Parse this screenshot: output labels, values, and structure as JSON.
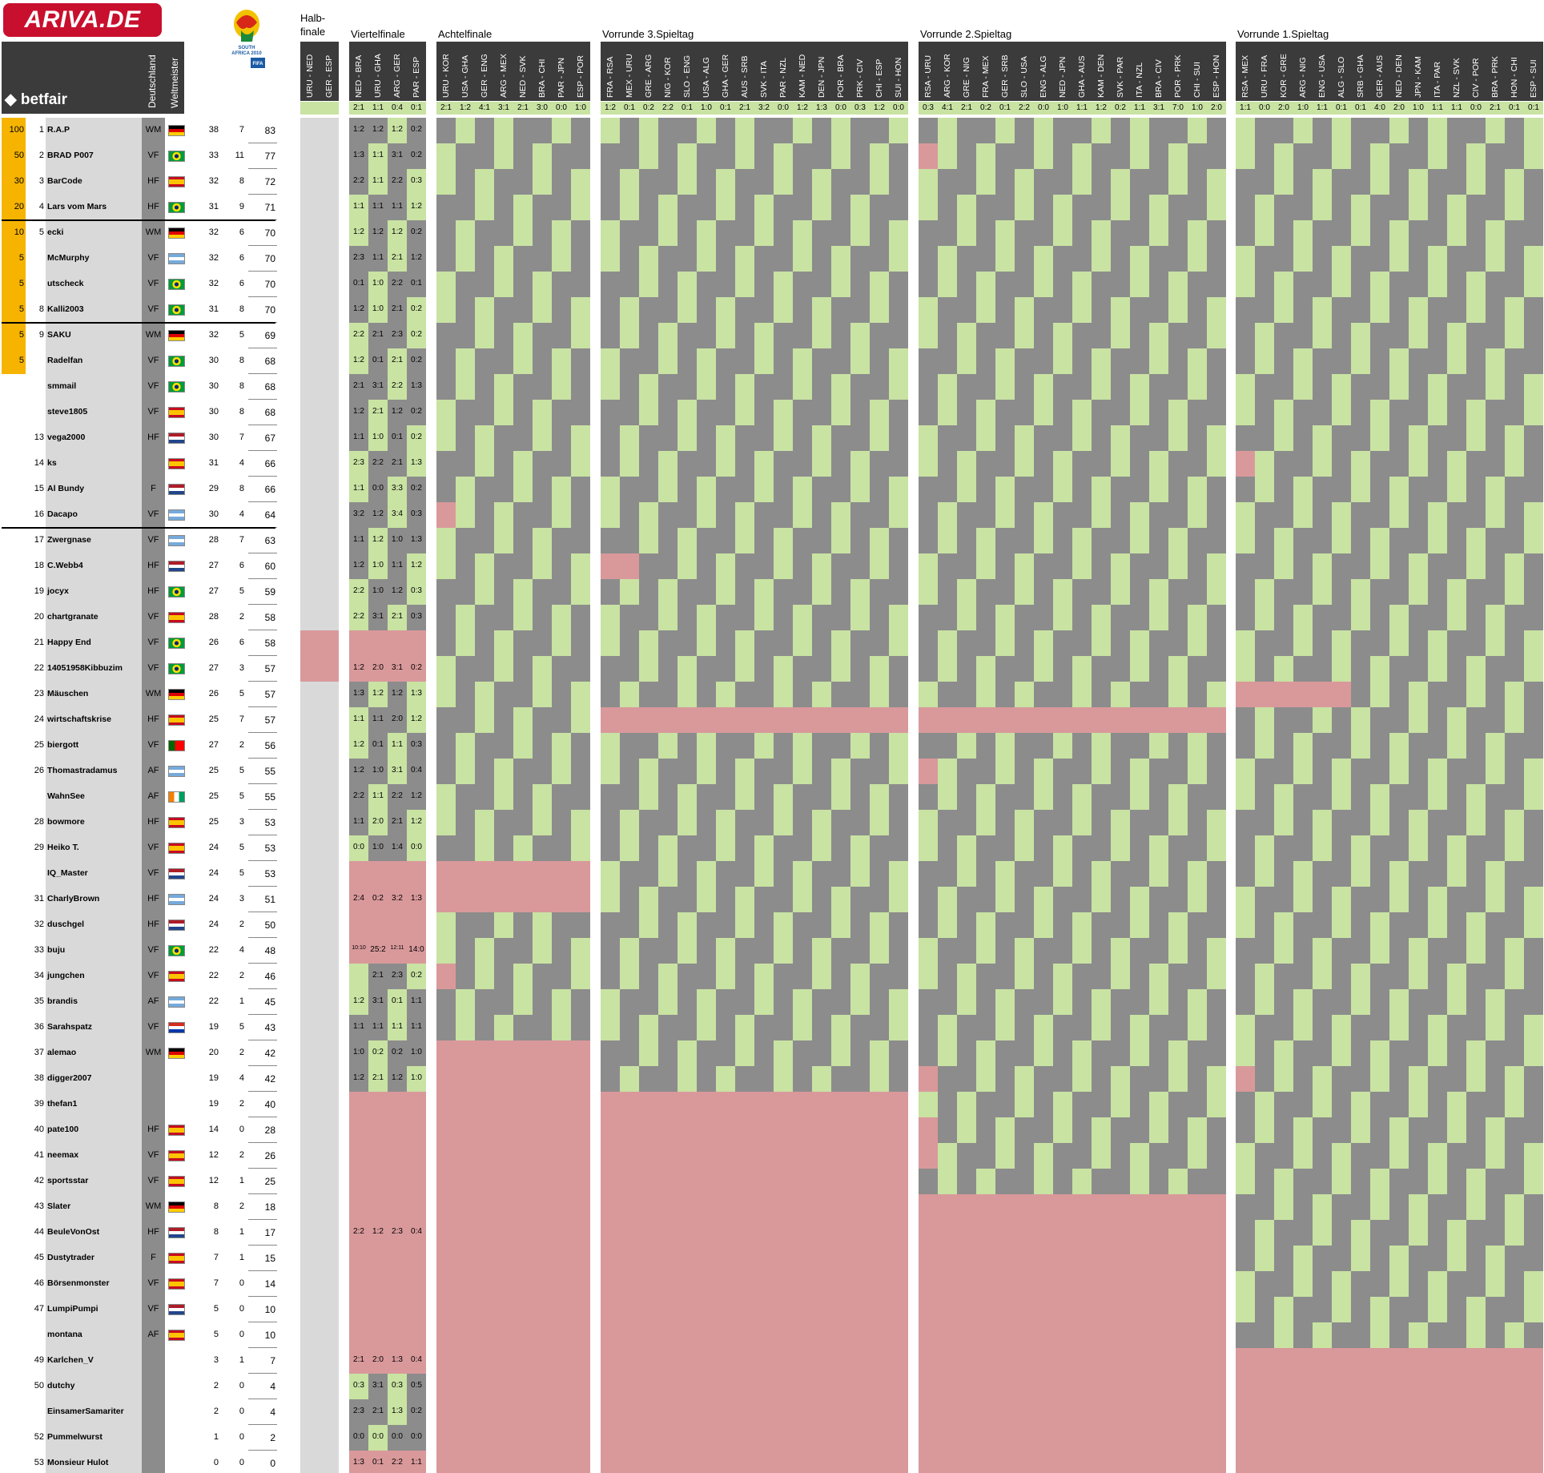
{
  "brand": {
    "logo": "ARIVA.DE",
    "sponsor": "betfair",
    "fifa_logo": "SOUTH AFRICA 2010 FIFA WORLD CUP"
  },
  "columns": {
    "de": "Deutschland",
    "wm": "Weltmeister"
  },
  "sections": [
    {
      "title": "Halb-\nfinale",
      "matches": [
        "URU - NED",
        "GER - ESP"
      ],
      "results": [
        "",
        ""
      ]
    },
    {
      "title": "Viertelfinale",
      "matches": [
        "NED - BRA",
        "URU - GHA",
        "ARG - GER",
        "PAR - ESP"
      ],
      "results": [
        "2:1",
        "1:1",
        "0:4",
        "0:1"
      ]
    },
    {
      "title": "Achtelfinale",
      "matches": [
        "URU - KOR",
        "USA - GHA",
        "GER - ENG",
        "ARG - MEX",
        "NED - SVK",
        "BRA - CHI",
        "PAR - JPN",
        "ESP - POR"
      ],
      "results": [
        "2:1",
        "1:2",
        "4:1",
        "3:1",
        "2:1",
        "3:0",
        "0:0",
        "1:0"
      ]
    },
    {
      "title": "Vorrunde 3.Spieltag",
      "matches": [
        "FRA - RSA",
        "MEX - URU",
        "GRE - ARG",
        "NIG - KOR",
        "SLO - ENG",
        "USA - ALG",
        "GHA - GER",
        "AUS - SRB",
        "SVK - ITA",
        "PAR - NZL",
        "KAM - NED",
        "DEN - JPN",
        "POR - BRA",
        "PRK - CIV",
        "CHI - ESP",
        "SUI - HON"
      ],
      "results": [
        "1:2",
        "0:1",
        "0:2",
        "2:2",
        "0:1",
        "1:0",
        "0:1",
        "2:1",
        "3:2",
        "0:0",
        "1:2",
        "1:3",
        "0:0",
        "0:3",
        "1:2",
        "0:0"
      ]
    },
    {
      "title": "Vorrunde 2.Spieltag",
      "matches": [
        "RSA - URU",
        "ARG - KOR",
        "GRE - NIG",
        "FRA - MEX",
        "GER - SRB",
        "SLO - USA",
        "ENG - ALG",
        "NED - JPN",
        "GHA - AUS",
        "KAM - DEN",
        "SVK - PAR",
        "ITA - NZL",
        "BRA - CIV",
        "POR - PRK",
        "CHI - SUI",
        "ESP - HON"
      ],
      "results": [
        "0:3",
        "4:1",
        "2:1",
        "0:2",
        "0:1",
        "2:2",
        "0:0",
        "1:0",
        "1:1",
        "1:2",
        "0:2",
        "1:1",
        "3:1",
        "7:0",
        "1:0",
        "2:0"
      ]
    },
    {
      "title": "Vorrunde 1.Spieltag",
      "matches": [
        "RSA - MEX",
        "URU - FRA",
        "KOR - GRE",
        "ARG - NIG",
        "ENG - USA",
        "ALG - SLO",
        "SRB - GHA",
        "GER - AUS",
        "NED - DEN",
        "JPN - KAM",
        "ITA - PAR",
        "NZL - SVK",
        "CIV - POR",
        "BRA - PRK",
        "HON - CHI",
        "ESP - SUI"
      ],
      "results": [
        "1:1",
        "0:0",
        "2:0",
        "1:0",
        "1:1",
        "0:1",
        "0:1",
        "4:0",
        "2:0",
        "1:0",
        "1:1",
        "1:1",
        "0:0",
        "2:1",
        "0:1",
        "0:1"
      ]
    }
  ],
  "players": [
    {
      "prize": "100",
      "rank": "1",
      "name": "R.A.P",
      "de": "WM",
      "flag": "DE",
      "c1": "38",
      "c2": "7",
      "pts": "83"
    },
    {
      "prize": "50",
      "rank": "2",
      "name": "BRAD P007",
      "de": "VF",
      "flag": "BR",
      "c1": "33",
      "c2": "11",
      "pts": "77"
    },
    {
      "prize": "30",
      "rank": "3",
      "name": "BarCode",
      "de": "HF",
      "flag": "ES",
      "c1": "32",
      "c2": "8",
      "pts": "72"
    },
    {
      "prize": "20",
      "rank": "4",
      "name": "Lars vom Mars",
      "de": "HF",
      "flag": "BR",
      "c1": "31",
      "c2": "9",
      "pts": "71"
    },
    {
      "prize": "10",
      "rank": "5",
      "name": "ecki",
      "de": "WM",
      "flag": "DE",
      "c1": "32",
      "c2": "6",
      "pts": "70"
    },
    {
      "prize": "5",
      "rank": "",
      "name": "McMurphy",
      "de": "VF",
      "flag": "AR",
      "c1": "32",
      "c2": "6",
      "pts": "70"
    },
    {
      "prize": "5",
      "rank": "",
      "name": "utscheck",
      "de": "VF",
      "flag": "BR",
      "c1": "32",
      "c2": "6",
      "pts": "70"
    },
    {
      "prize": "5",
      "rank": "8",
      "name": "Kalli2003",
      "de": "VF",
      "flag": "BR",
      "c1": "31",
      "c2": "8",
      "pts": "70"
    },
    {
      "prize": "5",
      "rank": "9",
      "name": "SAKU",
      "de": "WM",
      "flag": "DE",
      "c1": "32",
      "c2": "5",
      "pts": "69"
    },
    {
      "prize": "5",
      "rank": "",
      "name": "Radelfan",
      "de": "VF",
      "flag": "BR",
      "c1": "30",
      "c2": "8",
      "pts": "68"
    },
    {
      "prize": "",
      "rank": "",
      "name": "smmail",
      "de": "VF",
      "flag": "BR",
      "c1": "30",
      "c2": "8",
      "pts": "68"
    },
    {
      "prize": "",
      "rank": "",
      "name": "steve1805",
      "de": "VF",
      "flag": "ES",
      "c1": "30",
      "c2": "8",
      "pts": "68"
    },
    {
      "prize": "",
      "rank": "13",
      "name": "vega2000",
      "de": "HF",
      "flag": "NL",
      "c1": "30",
      "c2": "7",
      "pts": "67"
    },
    {
      "prize": "",
      "rank": "14",
      "name": "ks",
      "de": "",
      "flag": "ES",
      "c1": "31",
      "c2": "4",
      "pts": "66"
    },
    {
      "prize": "",
      "rank": "15",
      "name": "Al Bundy",
      "de": "F",
      "flag": "NL",
      "c1": "29",
      "c2": "8",
      "pts": "66"
    },
    {
      "prize": "",
      "rank": "16",
      "name": "Dacapo",
      "de": "VF",
      "flag": "AR",
      "c1": "30",
      "c2": "4",
      "pts": "64"
    },
    {
      "prize": "",
      "rank": "17",
      "name": "Zwergnase",
      "de": "VF",
      "flag": "AR",
      "c1": "28",
      "c2": "7",
      "pts": "63"
    },
    {
      "prize": "",
      "rank": "18",
      "name": "C.Webb4",
      "de": "HF",
      "flag": "NL",
      "c1": "27",
      "c2": "6",
      "pts": "60"
    },
    {
      "prize": "",
      "rank": "19",
      "name": "jocyx",
      "de": "HF",
      "flag": "BR",
      "c1": "27",
      "c2": "5",
      "pts": "59"
    },
    {
      "prize": "",
      "rank": "20",
      "name": "chartgranate",
      "de": "VF",
      "flag": "ES",
      "c1": "28",
      "c2": "2",
      "pts": "58"
    },
    {
      "prize": "",
      "rank": "21",
      "name": "Happy End",
      "de": "VF",
      "flag": "BR",
      "c1": "26",
      "c2": "6",
      "pts": "58"
    },
    {
      "prize": "",
      "rank": "22",
      "name": "14051958Kibbuzim",
      "de": "VF",
      "flag": "BR",
      "c1": "27",
      "c2": "3",
      "pts": "57"
    },
    {
      "prize": "",
      "rank": "23",
      "name": "Mäuschen",
      "de": "WM",
      "flag": "DE",
      "c1": "26",
      "c2": "5",
      "pts": "57"
    },
    {
      "prize": "",
      "rank": "24",
      "name": "wirtschaftskrise",
      "de": "HF",
      "flag": "ES",
      "c1": "25",
      "c2": "7",
      "pts": "57"
    },
    {
      "prize": "",
      "rank": "25",
      "name": "biergott",
      "de": "VF",
      "flag": "PT",
      "c1": "27",
      "c2": "2",
      "pts": "56"
    },
    {
      "prize": "",
      "rank": "26",
      "name": "Thomastradamus",
      "de": "AF",
      "flag": "AR",
      "c1": "25",
      "c2": "5",
      "pts": "55"
    },
    {
      "prize": "",
      "rank": "",
      "name": "WahnSee",
      "de": "AF",
      "flag": "CI",
      "c1": "25",
      "c2": "5",
      "pts": "55"
    },
    {
      "prize": "",
      "rank": "28",
      "name": "bowmore",
      "de": "HF",
      "flag": "ES",
      "c1": "25",
      "c2": "3",
      "pts": "53"
    },
    {
      "prize": "",
      "rank": "29",
      "name": "Heiko T.",
      "de": "VF",
      "flag": "ES",
      "c1": "24",
      "c2": "5",
      "pts": "53"
    },
    {
      "prize": "",
      "rank": "",
      "name": "IQ_Master",
      "de": "VF",
      "flag": "NL",
      "c1": "24",
      "c2": "5",
      "pts": "53"
    },
    {
      "prize": "",
      "rank": "31",
      "name": "CharlyBrown",
      "de": "HF",
      "flag": "AR",
      "c1": "24",
      "c2": "3",
      "pts": "51"
    },
    {
      "prize": "",
      "rank": "32",
      "name": "duschgel",
      "de": "HF",
      "flag": "NL",
      "c1": "24",
      "c2": "2",
      "pts": "50"
    },
    {
      "prize": "",
      "rank": "33",
      "name": "buju",
      "de": "VF",
      "flag": "BR",
      "c1": "22",
      "c2": "4",
      "pts": "48"
    },
    {
      "prize": "",
      "rank": "34",
      "name": "jungchen",
      "de": "VF",
      "flag": "ES",
      "c1": "22",
      "c2": "2",
      "pts": "46"
    },
    {
      "prize": "",
      "rank": "35",
      "name": "brandis",
      "de": "AF",
      "flag": "AR",
      "c1": "22",
      "c2": "1",
      "pts": "45"
    },
    {
      "prize": "",
      "rank": "36",
      "name": "Sarahspatz",
      "de": "VF",
      "flag": "PY",
      "c1": "19",
      "c2": "5",
      "pts": "43"
    },
    {
      "prize": "",
      "rank": "37",
      "name": "alemao",
      "de": "WM",
      "flag": "DE",
      "c1": "20",
      "c2": "2",
      "pts": "42"
    },
    {
      "prize": "",
      "rank": "38",
      "name": "digger2007",
      "de": "",
      "flag": "",
      "c1": "19",
      "c2": "4",
      "pts": "42"
    },
    {
      "prize": "",
      "rank": "39",
      "name": "thefan1",
      "de": "",
      "flag": "",
      "c1": "19",
      "c2": "2",
      "pts": "40"
    },
    {
      "prize": "",
      "rank": "40",
      "name": "pate100",
      "de": "HF",
      "flag": "ES",
      "c1": "14",
      "c2": "0",
      "pts": "28"
    },
    {
      "prize": "",
      "rank": "41",
      "name": "neemax",
      "de": "VF",
      "flag": "ES",
      "c1": "12",
      "c2": "2",
      "pts": "26"
    },
    {
      "prize": "",
      "rank": "42",
      "name": "sportsstar",
      "de": "VF",
      "flag": "ES",
      "c1": "12",
      "c2": "1",
      "pts": "25"
    },
    {
      "prize": "",
      "rank": "43",
      "name": "Slater",
      "de": "WM",
      "flag": "DE",
      "c1": "8",
      "c2": "2",
      "pts": "18"
    },
    {
      "prize": "",
      "rank": "44",
      "name": "BeuleVonOst",
      "de": "HF",
      "flag": "NL",
      "c1": "8",
      "c2": "1",
      "pts": "17"
    },
    {
      "prize": "",
      "rank": "45",
      "name": "Dustytrader",
      "de": "F",
      "flag": "ES",
      "c1": "7",
      "c2": "1",
      "pts": "15"
    },
    {
      "prize": "",
      "rank": "46",
      "name": "Börsenmonster",
      "de": "VF",
      "flag": "ES",
      "c1": "7",
      "c2": "0",
      "pts": "14"
    },
    {
      "prize": "",
      "rank": "47",
      "name": "LumpiPumpi",
      "de": "VF",
      "flag": "NL",
      "c1": "5",
      "c2": "0",
      "pts": "10"
    },
    {
      "prize": "",
      "rank": "",
      "name": "montana",
      "de": "AF",
      "flag": "ES",
      "c1": "5",
      "c2": "0",
      "pts": "10"
    },
    {
      "prize": "",
      "rank": "49",
      "name": "Karlchen_V",
      "de": "",
      "flag": "",
      "c1": "3",
      "c2": "1",
      "pts": "7"
    },
    {
      "prize": "",
      "rank": "50",
      "name": "dutchy",
      "de": "",
      "flag": "",
      "c1": "2",
      "c2": "0",
      "pts": "4"
    },
    {
      "prize": "",
      "rank": "",
      "name": "EinsamerSamariter",
      "de": "",
      "flag": "",
      "c1": "2",
      "c2": "0",
      "pts": "4"
    },
    {
      "prize": "",
      "rank": "52",
      "name": "Pummelwurst",
      "de": "",
      "flag": "",
      "c1": "1",
      "c2": "0",
      "pts": "2"
    },
    {
      "prize": "",
      "rank": "53",
      "name": "Monsieur Hulot",
      "de": "",
      "flag": "",
      "c1": "0",
      "c2": "0",
      "pts": "0"
    }
  ],
  "sample_tips": {
    "viertelfinale": [
      [
        "1:2",
        "1:2",
        "1:2",
        "0:2"
      ],
      [
        "1:3",
        "1:1",
        "3:1",
        "0:2"
      ],
      [
        "2:2",
        "1:1",
        "2:2",
        "0:3"
      ],
      [
        "1:1",
        "1:1",
        "1:1",
        "1:2"
      ],
      [
        "1:2",
        "1:2",
        "1:2",
        "0:2"
      ],
      [
        "2:3",
        "1:1",
        "2:1",
        "1:2"
      ],
      [
        "0:1",
        "1:0",
        "2:2",
        "0:1"
      ],
      [
        "1:2",
        "1:0",
        "2:1",
        "0:2"
      ],
      [
        "2:2",
        "2:1",
        "2:3",
        "0:2"
      ],
      [
        "1:2",
        "0:1",
        "2:1",
        "0:2"
      ],
      [
        "2:1",
        "3:1",
        "2:2",
        "1:3"
      ],
      [
        "1:2",
        "2:1",
        "1:2",
        "0:2"
      ],
      [
        "1:1",
        "1:0",
        "0:1",
        "0:2"
      ],
      [
        "2:3",
        "2:2",
        "2:1",
        "1:3"
      ],
      [
        "1:1",
        "0:0",
        "3:3",
        "0:2"
      ],
      [
        "3:2",
        "1:2",
        "3:4",
        "0:3"
      ],
      [
        "1:1",
        "1:2",
        "1:0",
        "1:3"
      ],
      [
        "1:2",
        "1:0",
        "1:1",
        "1:2"
      ],
      [
        "2:2",
        "1:0",
        "1:2",
        "0:3"
      ],
      [
        "2:2",
        "3:1",
        "2:1",
        "0:3"
      ],
      [
        "",
        "",
        "",
        ""
      ],
      [
        "1:2",
        "2:0",
        "3:1",
        "0:2"
      ],
      [
        "1:3",
        "1:2",
        "1:2",
        "1:3"
      ],
      [
        "1:1",
        "1:1",
        "2:0",
        "1:2"
      ],
      [
        "1:2",
        "0:1",
        "1:1",
        "0:3"
      ],
      [
        "1:2",
        "1:0",
        "3:1",
        "0:4"
      ],
      [
        "2:2",
        "1:1",
        "2:2",
        "1:2"
      ],
      [
        "1:1",
        "2:0",
        "2:1",
        "1:2"
      ],
      [
        "0:0",
        "1:0",
        "1:4",
        "0:0"
      ],
      [
        "",
        "",
        "",
        ""
      ],
      [
        "2:4",
        "0:2",
        "3:2",
        "1:3"
      ],
      [
        "",
        "",
        "",
        ""
      ],
      [
        "10:10",
        "25:2",
        "12:11",
        "14:0"
      ],
      [
        "",
        "2:1",
        "2:3",
        "0:2"
      ],
      [
        "1:2",
        "3:1",
        "0:1",
        "1:1"
      ],
      [
        "1:1",
        "1:1",
        "1:1",
        "1:1"
      ],
      [
        "1:0",
        "0:2",
        "0:2",
        "1:0"
      ],
      [
        "1:2",
        "2:1",
        "1:2",
        "1:0"
      ],
      [
        "",
        "",
        "",
        ""
      ],
      [
        "",
        "",
        "",
        ""
      ],
      [
        "",
        "",
        "",
        ""
      ],
      [
        "",
        "",
        "",
        ""
      ],
      [
        "",
        "",
        "",
        ""
      ],
      [
        "2:2",
        "1:2",
        "2:3",
        "0:4"
      ],
      [
        "",
        "",
        "",
        ""
      ],
      [
        "",
        "",
        "",
        ""
      ],
      [
        "",
        "",
        "",
        ""
      ],
      [
        "",
        "",
        "",
        ""
      ],
      [
        "2:1",
        "2:0",
        "1:3",
        "0:4"
      ],
      [
        "0:3",
        "3:1",
        "0:3",
        "0:5"
      ],
      [
        "2:3",
        "2:1",
        "1:3",
        "0:2"
      ],
      [
        "0:0",
        "0:0",
        "0:0",
        "0:0"
      ],
      [
        "1:3",
        "0:1",
        "2:2",
        "1:1"
      ]
    ]
  },
  "colors": {
    "green": "#c9e3a3",
    "grey": "#8c8c8c",
    "red": "#d9999b",
    "dark": "#3b3b3b",
    "gold": "#f6b400",
    "name_bg": "#d9d9d9"
  }
}
